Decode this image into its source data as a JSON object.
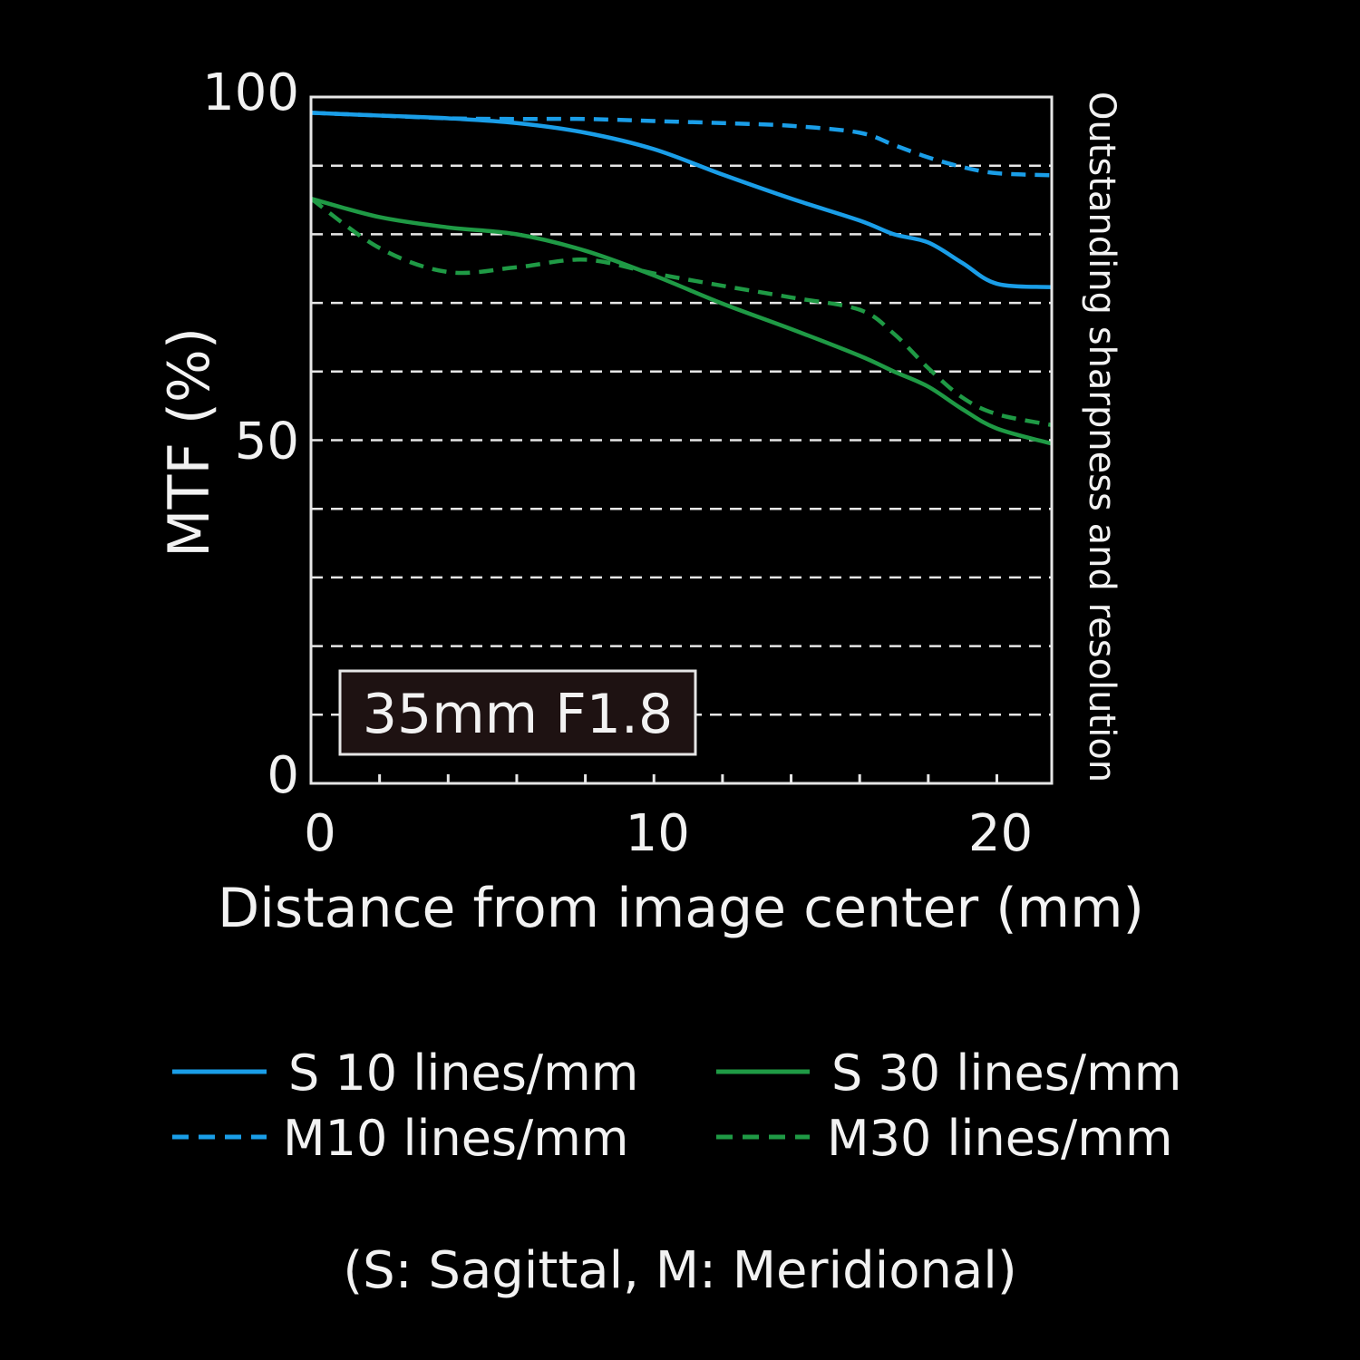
{
  "chart_data": {
    "type": "line",
    "ylabel": "MTF (%)",
    "xlabel": "Distance from image center (mm)",
    "side_note": "Outstanding sharpness and resolution",
    "lens_label": "35mm F1.8",
    "footnote": "(S: Sagittal, M: Meridional)",
    "xlim": [
      0,
      21.6
    ],
    "ylim": [
      0,
      100
    ],
    "x_ticks": [
      0,
      10,
      20
    ],
    "x_tick_labels": [
      "0",
      "10",
      "20"
    ],
    "x_minor_ticks": [
      2,
      4,
      6,
      8,
      12,
      14,
      16,
      18
    ],
    "y_ticks": [
      0,
      50,
      100
    ],
    "y_tick_labels": [
      "0",
      "50",
      "100"
    ],
    "y_gridlines": [
      10,
      20,
      30,
      40,
      50,
      60,
      70,
      80,
      90
    ],
    "grid": true,
    "legend_position": "bottom",
    "colors": {
      "blue": "#1a9ee8",
      "green": "#1f9a45",
      "background": "#000000",
      "frame": "#e6e6e6"
    },
    "series": [
      {
        "name": "S 10 lines/mm",
        "color": "#1a9ee8",
        "dash": false,
        "x": [
          0,
          2,
          4,
          6,
          8,
          10,
          12,
          14,
          16,
          17,
          18,
          19,
          20,
          21.6
        ],
        "y": [
          97.7,
          97.3,
          96.9,
          96.2,
          94.8,
          92.4,
          88.7,
          85.2,
          82.0,
          80.0,
          78.8,
          75.8,
          72.8,
          72.3
        ]
      },
      {
        "name": "M10 lines/mm",
        "color": "#1a9ee8",
        "dash": true,
        "x": [
          0,
          2,
          4,
          6,
          8,
          10,
          12,
          14,
          16,
          17,
          18,
          19,
          20,
          21.6
        ],
        "y": [
          97.7,
          97.3,
          96.9,
          96.8,
          96.8,
          96.5,
          96.2,
          95.8,
          94.8,
          93.0,
          91.2,
          89.8,
          88.9,
          88.6
        ]
      },
      {
        "name": "S 30 lines/mm",
        "color": "#1f9a45",
        "dash": false,
        "x": [
          0,
          2,
          4,
          6,
          8,
          10,
          12,
          14,
          16,
          17,
          18,
          19,
          20,
          21.6
        ],
        "y": [
          85.2,
          82.5,
          81.0,
          80.0,
          77.6,
          74.0,
          69.9,
          66.2,
          62.3,
          60.0,
          57.8,
          54.5,
          51.7,
          49.5
        ]
      },
      {
        "name": "M30 lines/mm",
        "color": "#1f9a45",
        "dash": true,
        "x": [
          0,
          2,
          4,
          6,
          8,
          10,
          12,
          14,
          16,
          17,
          18,
          19,
          20,
          21.6
        ],
        "y": [
          85.2,
          78.0,
          74.5,
          75.2,
          76.3,
          74.3,
          72.5,
          70.8,
          69.0,
          65.5,
          60.5,
          56.2,
          53.8,
          52.2
        ]
      }
    ]
  }
}
